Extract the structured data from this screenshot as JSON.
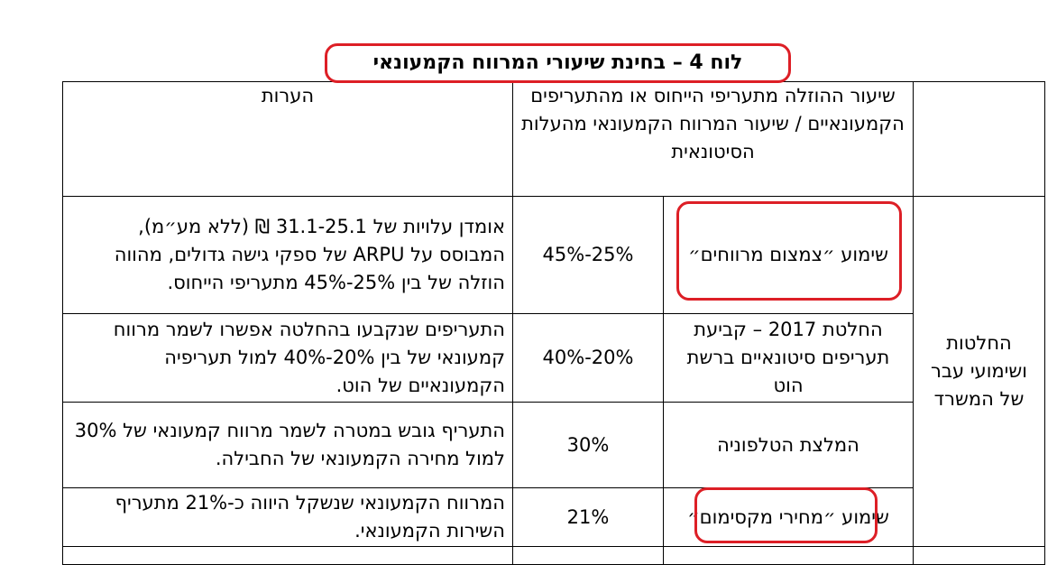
{
  "title": "לוח 4 – בחינת שיעורי המרווח הקמעונאי",
  "table": {
    "header": [
      "",
      "שיעור ההוזלה מתעריפי הייחוס או מהתעריפים הקמעונאיים / שיעור המרווח הקמעונאי מהעלות הסיטונאית",
      "הערות"
    ],
    "group": "החלטות ושימועי עבר של המשרד",
    "rows": [
      [
        "שימוע ״צמצום מרווחים״",
        "45%-25%",
        "אומדן עלויות של 31.1-25.1 ₪ (ללא מע״מ), המבוסס על ARPU של ספקי גישה גדולים, מהווה הוזלה של בין 25%-45% מתעריפי הייחוס."
      ],
      [
        "החלטת 2017 – קביעת תעריפים סיטונאיים ברשת הוט",
        "40%-20%",
        "התעריפים שנקבעו בהחלטה אפשרו לשמר מרווח קמעונאי של בין 20%-40% למול תעריפיה הקמעונאיים של הוט."
      ],
      [
        "המלצת הטלפוניה",
        "30%",
        "התעריף גובש במטרה לשמר מרווח קמעונאי של 30% למול מחירה הקמעונאי של החבילה."
      ],
      [
        "שימוע ״מחירי מקסימום״",
        "21%",
        "המרווח הקמעונאי שנשקל היווה כ-21% מתעריף השירות הקמעונאי."
      ]
    ]
  }
}
